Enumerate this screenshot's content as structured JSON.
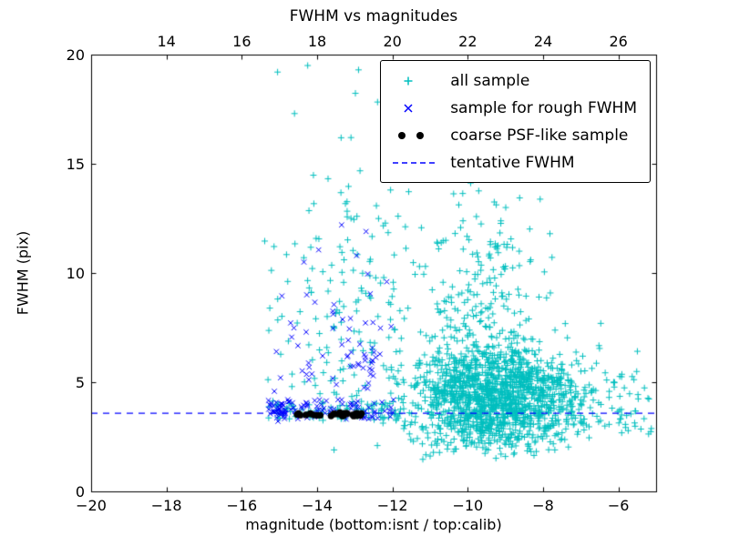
{
  "chart_data": {
    "type": "scatter",
    "title": "FWHM vs magnitudes",
    "xlabel": "magnitude (bottom:isnt / top:calib)",
    "ylabel": "FWHM (pix)",
    "xlim": [
      -20,
      -5
    ],
    "ylim": [
      0,
      20
    ],
    "grid": false,
    "seed": 1337,
    "x_axis_bottom": {
      "tick_values": [
        -20,
        -18,
        -16,
        -14,
        -12,
        -10,
        -8,
        -6
      ],
      "tick_labels": [
        "−20",
        "−18",
        "−16",
        "−14",
        "−12",
        "−10",
        "−8",
        "−6"
      ]
    },
    "x_axis_top": {
      "tick_values_in_bottom_scale": [
        -18,
        -16,
        -14,
        -12,
        -10,
        -8,
        -6
      ],
      "tick_labels": [
        "14",
        "16",
        "18",
        "20",
        "22",
        "24",
        "26"
      ],
      "calib_minus_isnt_offset": 32
    },
    "y_axis": {
      "tick_values": [
        0,
        5,
        10,
        15,
        20
      ],
      "tick_labels": [
        "0",
        "5",
        "10",
        "15",
        "20"
      ]
    },
    "tentative_fwhm_line": {
      "y": 3.6,
      "color": "#0000ff",
      "style": "dashed"
    },
    "series": [
      {
        "name": "all sample",
        "marker": "plus",
        "color": "#00bfbf",
        "clusters": [
          {
            "type": "gauss",
            "n": 1400,
            "cx": -9.25,
            "cy": 4.2,
            "sx": 1.15,
            "sy": 1.2,
            "ymin": 1.9,
            "ymax": 8.5,
            "xmax": -5.2
          },
          {
            "type": "gauss",
            "n": 260,
            "cx": -9.6,
            "cy": 7.6,
            "sx": 0.95,
            "sy": 3.1,
            "ymin": 2.5,
            "ymax": 20,
            "xmin": -11.6,
            "xmax": -7.4
          },
          {
            "type": "gauss",
            "n": 165,
            "cx": -13.2,
            "cy": 7.0,
            "sx": 1.25,
            "sy": 4.0,
            "ymin": 3.1,
            "ymax": 20,
            "xmin": -15.45,
            "xmax": -11.3
          },
          {
            "type": "uniform",
            "n": 85,
            "x0": -15.3,
            "x1": -11.8,
            "y0": 3.25,
            "y1": 4.15
          },
          {
            "type": "uniform",
            "n": 105,
            "x0": -8.1,
            "x1": -5.1,
            "y0": 2.4,
            "y1": 5.6
          },
          {
            "type": "uniform",
            "n": 22,
            "x0": -11.3,
            "x1": -8.0,
            "y0": 1.3,
            "y1": 2.4
          },
          {
            "type": "points",
            "pts": [
              [
                -15.05,
                19.2
              ],
              [
                -14.6,
                17.3
              ],
              [
                -14.25,
                19.5
              ],
              [
                -12.9,
                19.3
              ],
              [
                -13.1,
                16.2
              ],
              [
                -10.45,
                19.4
              ],
              [
                -9.95,
                18.8
              ],
              [
                -10.7,
                17.6
              ],
              [
                -12.05,
                13.8
              ],
              [
                -11.85,
                12.6
              ],
              [
                -13.55,
                1.9
              ],
              [
                -12.4,
                2.1
              ],
              [
                -9.0,
                1.6
              ]
            ]
          }
        ]
      },
      {
        "name": "sample for rough FWHM",
        "marker": "x",
        "color": "#0000ff",
        "clusters": [
          {
            "type": "uniform",
            "n": 85,
            "x0": -15.35,
            "x1": -11.95,
            "y0": 3.3,
            "y1": 4.2
          },
          {
            "type": "gauss",
            "n": 22,
            "cx": -15.05,
            "cy": 3.75,
            "sx": 0.16,
            "sy": 0.2,
            "ymin": 3.2,
            "ymax": 4.4
          },
          {
            "type": "gauss",
            "n": 50,
            "cx": -13.4,
            "cy": 6.6,
            "sx": 1.0,
            "sy": 2.0,
            "ymin": 4.2,
            "ymax": 11.5,
            "xmin": -15.3,
            "xmax": -11.95
          },
          {
            "type": "gauss",
            "n": 13,
            "cx": -12.5,
            "cy": 5.9,
            "sx": 0.22,
            "sy": 0.45,
            "ymin": 4.8,
            "ymax": 7.2
          },
          {
            "type": "points",
            "pts": [
              [
                -13.35,
                12.2
              ],
              [
                -12.7,
                11.9
              ],
              [
                -14.35,
                10.5
              ],
              [
                -12.95,
                10.8
              ],
              [
                -12.15,
                9.6
              ]
            ]
          }
        ]
      },
      {
        "name": "coarse PSF-like sample",
        "marker": "dot",
        "color": "#000000",
        "clusters": [
          {
            "type": "uniform",
            "n": 30,
            "x0": -14.55,
            "x1": -12.8,
            "y0": 3.45,
            "y1": 3.62
          }
        ]
      }
    ],
    "legend": {
      "position": "upper right",
      "entries": [
        {
          "label": "all sample",
          "marker": "plus",
          "color": "#00bfbf"
        },
        {
          "label": "sample for rough FWHM",
          "marker": "x",
          "color": "#0000ff"
        },
        {
          "label": "coarse PSF-like sample",
          "marker": "dot-pair",
          "color": "#000000"
        },
        {
          "label": "tentative FWHM",
          "marker": "dashed-line",
          "color": "#0000ff"
        }
      ]
    }
  }
}
